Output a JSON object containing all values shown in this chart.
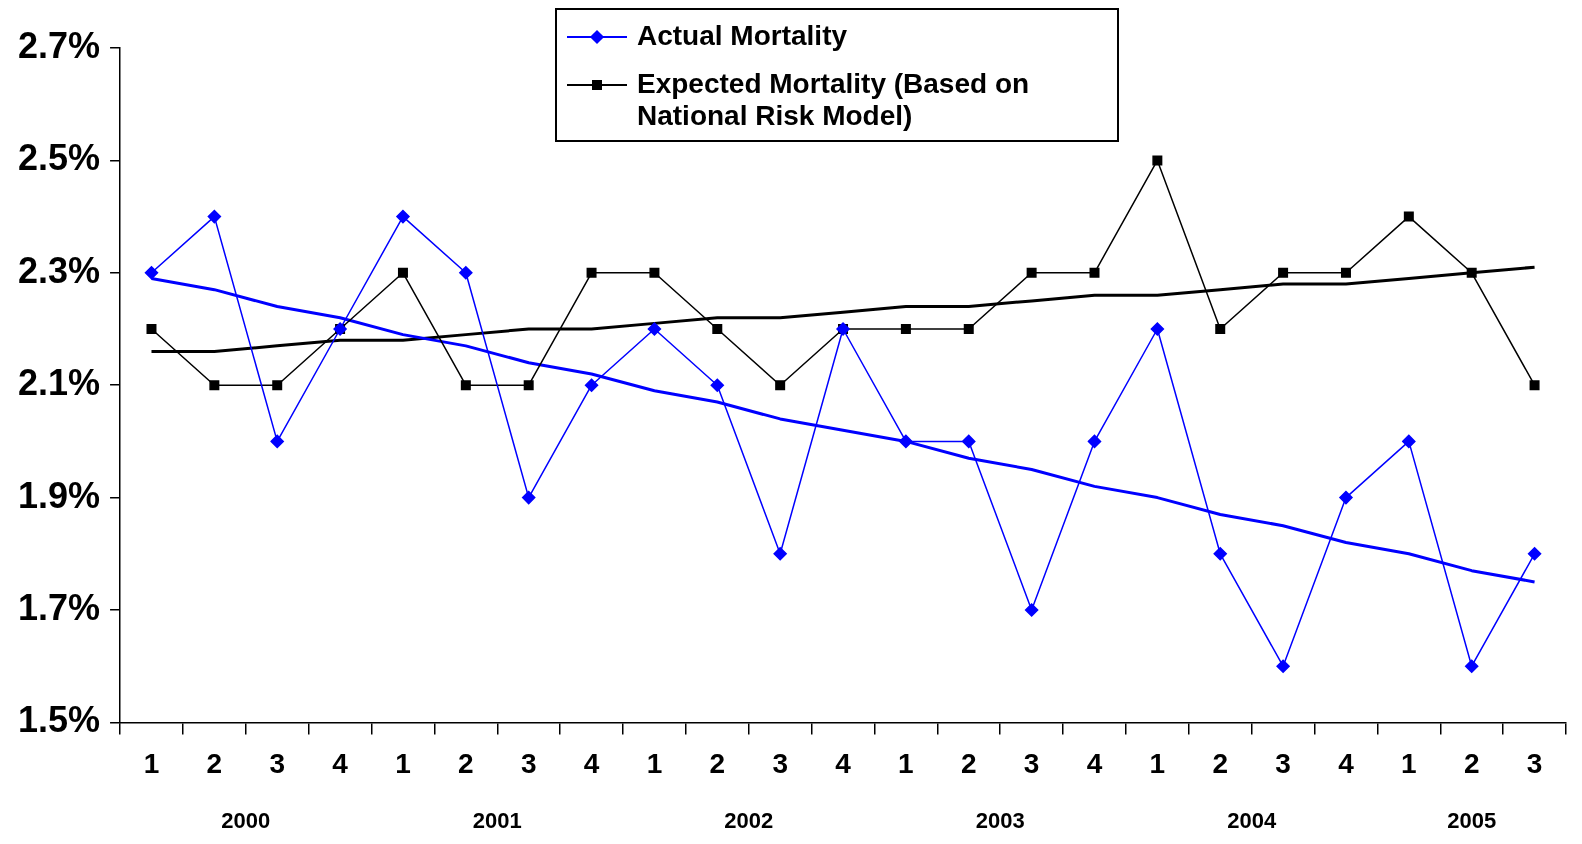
{
  "chart_data": {
    "type": "line",
    "categories": [
      "1",
      "2",
      "3",
      "4",
      "1",
      "2",
      "3",
      "4",
      "1",
      "2",
      "3",
      "4",
      "1",
      "2",
      "3",
      "4",
      "1",
      "2",
      "3",
      "4",
      "1",
      "2",
      "3"
    ],
    "series": [
      {
        "name": "Actual Mortality",
        "color": "#0000ff",
        "marker": "diamond",
        "values": [
          2.3,
          2.4,
          2.0,
          2.2,
          2.4,
          2.3,
          1.9,
          2.1,
          2.2,
          2.1,
          1.8,
          2.2,
          2.0,
          2.0,
          1.7,
          2.0,
          2.2,
          1.8,
          1.6,
          1.9,
          2.0,
          1.6,
          1.8
        ]
      },
      {
        "name": "Expected Mortality (Based on National Risk Model)",
        "color": "#000000",
        "marker": "square",
        "values": [
          2.2,
          2.1,
          2.1,
          2.2,
          2.3,
          2.1,
          2.1,
          2.3,
          2.3,
          2.2,
          2.1,
          2.2,
          2.2,
          2.2,
          2.3,
          2.3,
          2.5,
          2.2,
          2.3,
          2.3,
          2.4,
          2.3,
          2.1
        ]
      },
      {
        "color": "#0000ff",
        "marker": "none",
        "values": [
          2.29,
          2.27,
          2.24,
          2.22,
          2.19,
          2.17,
          2.14,
          2.12,
          2.09,
          2.07,
          2.04,
          2.02,
          2.0,
          1.97,
          1.95,
          1.92,
          1.9,
          1.87,
          1.85,
          1.82,
          1.8,
          1.77,
          1.75
        ]
      },
      {
        "color": "#000000",
        "marker": "none",
        "values": [
          2.16,
          2.16,
          2.17,
          2.18,
          2.18,
          2.19,
          2.2,
          2.2,
          2.21,
          2.22,
          2.22,
          2.23,
          2.24,
          2.24,
          2.25,
          2.26,
          2.26,
          2.27,
          2.28,
          2.28,
          2.29,
          2.3,
          2.31
        ]
      }
    ],
    "ylim": [
      1.5,
      2.7
    ],
    "yticks": [
      {
        "value": 1.5,
        "label": "1.5%"
      },
      {
        "value": 1.7,
        "label": "1.7%"
      },
      {
        "value": 1.9,
        "label": "1.9%"
      },
      {
        "value": 2.1,
        "label": "2.1%"
      },
      {
        "value": 2.3,
        "label": "2.3%"
      },
      {
        "value": 2.5,
        "label": "2.5%"
      },
      {
        "value": 2.7,
        "label": "2.7%"
      }
    ],
    "annotations": [
      "2000",
      "2001",
      "2002",
      "2003",
      "2004",
      "2005"
    ],
    "grid": false,
    "legend": "top"
  }
}
